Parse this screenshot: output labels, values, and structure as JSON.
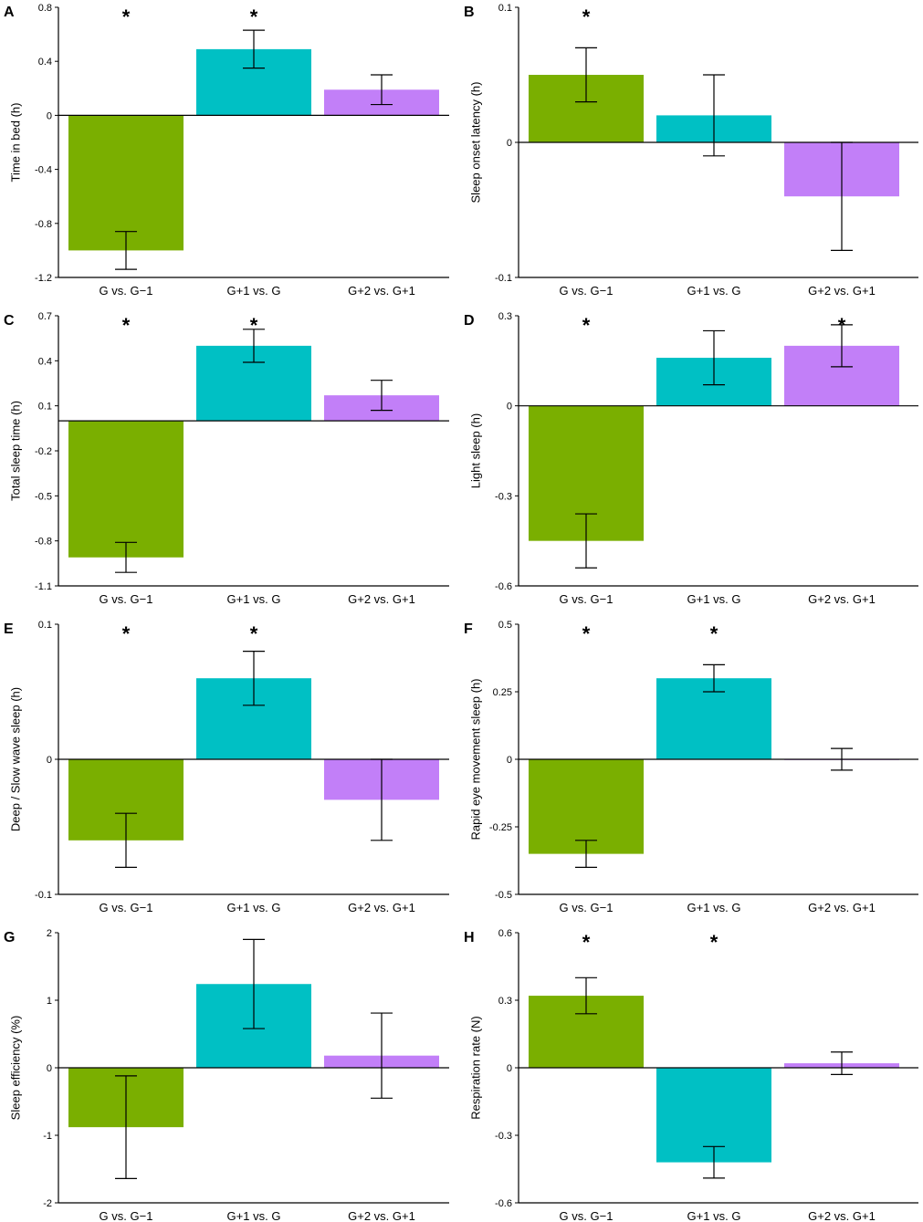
{
  "figure": {
    "colors": [
      "#7aaf00",
      "#00c0c4",
      "#c27ff8"
    ]
  },
  "chart_data": [
    {
      "type": "bar",
      "panel": "A",
      "ylabel": "Time in bed (h)",
      "categories": [
        "G vs. G−1",
        "G+1 vs. G",
        "G+2 vs. G+1"
      ],
      "values": [
        -1.0,
        0.49,
        0.19
      ],
      "err_low": [
        -1.14,
        0.35,
        0.08
      ],
      "err_high": [
        -0.86,
        0.63,
        0.3
      ],
      "significant": [
        true,
        true,
        false
      ],
      "ylim": [
        -1.2,
        0.8
      ],
      "yticks": [
        0.8,
        0.4,
        0,
        -0.4,
        -0.8,
        -1.2
      ],
      "ytick_labels": [
        "0.8",
        "0.4",
        "0",
        "-0.4",
        "-0.8",
        "-1.2"
      ]
    },
    {
      "type": "bar",
      "panel": "B",
      "ylabel": "Sleep onset latency (h)",
      "categories": [
        "G vs. G−1",
        "G+1 vs. G",
        "G+2 vs. G+1"
      ],
      "values": [
        0.05,
        0.02,
        -0.04
      ],
      "err_low": [
        0.03,
        -0.01,
        -0.08
      ],
      "err_high": [
        0.07,
        0.05,
        0.0
      ],
      "significant": [
        true,
        false,
        false
      ],
      "ylim": [
        -0.1,
        0.1
      ],
      "yticks": [
        0.1,
        0,
        -0.1
      ],
      "ytick_labels": [
        "0.1",
        "0",
        "-0.1"
      ]
    },
    {
      "type": "bar",
      "panel": "C",
      "ylabel": "Total sleep time (h)",
      "categories": [
        "G vs. G−1",
        "G+1 vs. G",
        "G+2 vs. G+1"
      ],
      "values": [
        -0.91,
        0.5,
        0.17
      ],
      "err_low": [
        -1.01,
        0.39,
        0.07
      ],
      "err_high": [
        -0.81,
        0.61,
        0.27
      ],
      "significant": [
        true,
        true,
        false
      ],
      "ylim": [
        -1.1,
        0.7
      ],
      "yticks": [
        0.7,
        0.4,
        0.1,
        -0.2,
        -0.5,
        -0.8,
        -1.1
      ],
      "ytick_labels": [
        "0.7",
        "0.4",
        "0.1",
        "-0.2",
        "-0.5",
        "-0.8",
        "-1.1"
      ]
    },
    {
      "type": "bar",
      "panel": "D",
      "ylabel": "Light sleep (h)",
      "categories": [
        "G vs. G−1",
        "G+1 vs. G",
        "G+2 vs. G+1"
      ],
      "values": [
        -0.45,
        0.16,
        0.2
      ],
      "err_low": [
        -0.54,
        0.07,
        0.13
      ],
      "err_high": [
        -0.36,
        0.25,
        0.27
      ],
      "significant": [
        true,
        false,
        true
      ],
      "ylim": [
        -0.6,
        0.3
      ],
      "yticks": [
        0.3,
        0,
        -0.3,
        -0.6
      ],
      "ytick_labels": [
        "0.3",
        "0",
        "-0.3",
        "-0.6"
      ]
    },
    {
      "type": "bar",
      "panel": "E",
      "ylabel": "Deep / Slow wave sleep (h)",
      "categories": [
        "G vs. G−1",
        "G+1 vs. G",
        "G+2 vs. G+1"
      ],
      "values": [
        -0.06,
        0.06,
        -0.03
      ],
      "err_low": [
        -0.08,
        0.04,
        -0.06
      ],
      "err_high": [
        -0.04,
        0.08,
        0.0
      ],
      "significant": [
        true,
        true,
        false
      ],
      "ylim": [
        -0.1,
        0.1
      ],
      "yticks": [
        0.1,
        0,
        -0.1
      ],
      "ytick_labels": [
        "0.1",
        "0",
        "-0.1"
      ]
    },
    {
      "type": "bar",
      "panel": "F",
      "ylabel": "Rapid eye movement sleep (h)",
      "categories": [
        "G vs. G−1",
        "G+1 vs. G",
        "G+2 vs. G+1"
      ],
      "values": [
        -0.35,
        0.3,
        0.0
      ],
      "err_low": [
        -0.4,
        0.25,
        -0.04
      ],
      "err_high": [
        -0.3,
        0.35,
        0.04
      ],
      "significant": [
        true,
        true,
        false
      ],
      "ylim": [
        -0.5,
        0.5
      ],
      "yticks": [
        0.5,
        0.25,
        0,
        -0.25,
        -0.5
      ],
      "ytick_labels": [
        "0.5",
        "0.25",
        "0",
        "-0.25",
        "-0.5"
      ]
    },
    {
      "type": "bar",
      "panel": "G",
      "ylabel": "Sleep efficiency (%)",
      "categories": [
        "G vs. G−1",
        "G+1 vs. G",
        "G+2 vs. G+1"
      ],
      "values": [
        -0.88,
        1.24,
        0.18
      ],
      "err_low": [
        -1.64,
        0.58,
        -0.45
      ],
      "err_high": [
        -0.12,
        1.9,
        0.81
      ],
      "significant": [
        false,
        false,
        false
      ],
      "ylim": [
        -2,
        2
      ],
      "yticks": [
        2,
        1,
        0,
        -1,
        -2
      ],
      "ytick_labels": [
        "2",
        "1",
        "0",
        "-1",
        "-2"
      ]
    },
    {
      "type": "bar",
      "panel": "H",
      "ylabel": "Respiration rate (N)",
      "categories": [
        "G vs. G−1",
        "G+1 vs. G",
        "G+2 vs. G+1"
      ],
      "values": [
        0.32,
        -0.42,
        0.02
      ],
      "err_low": [
        0.24,
        -0.49,
        -0.03
      ],
      "err_high": [
        0.4,
        -0.35,
        0.07
      ],
      "significant": [
        true,
        true,
        false
      ],
      "ylim": [
        -0.6,
        0.6
      ],
      "yticks": [
        0.6,
        0.3,
        0,
        -0.3,
        -0.6
      ],
      "ytick_labels": [
        "0.6",
        "0.3",
        "0",
        "-0.3",
        "-0.6"
      ]
    }
  ]
}
